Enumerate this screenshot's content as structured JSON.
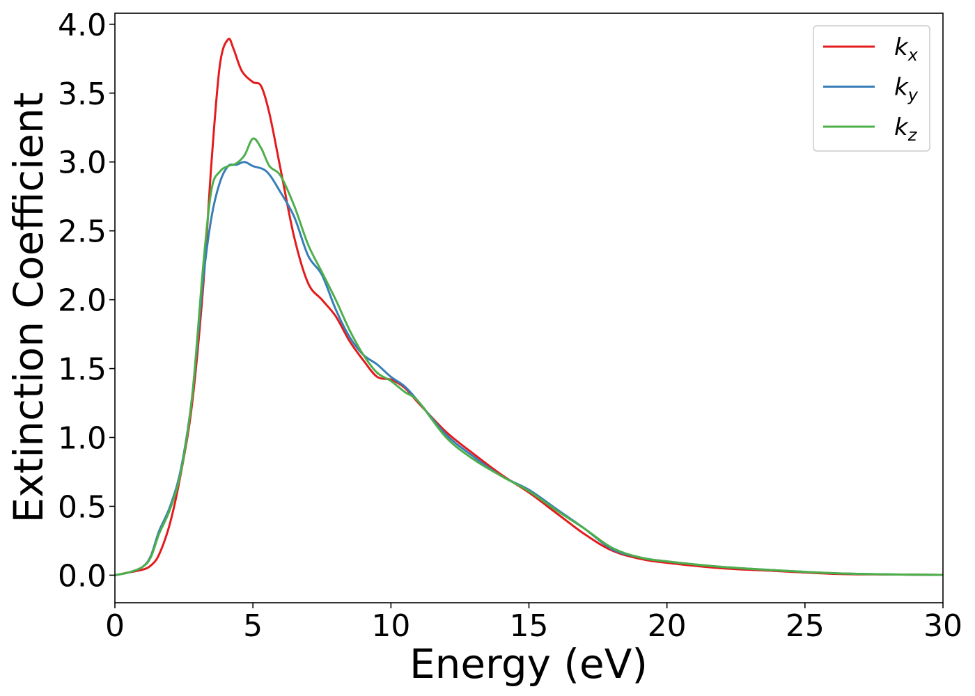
{
  "chart_data": {
    "type": "line",
    "title": "",
    "xlabel": "Energy (eV)",
    "ylabel": "Extinction Coefficient",
    "xlim": [
      0,
      30
    ],
    "ylim": [
      -0.2,
      4.08
    ],
    "xticks": [
      0,
      5,
      10,
      15,
      20,
      25,
      30
    ],
    "xtick_labels": [
      "0",
      "5",
      "10",
      "15",
      "20",
      "25",
      "30"
    ],
    "yticks": [
      0.0,
      0.5,
      1.0,
      1.5,
      2.0,
      2.5,
      3.0,
      3.5,
      4.0
    ],
    "ytick_labels": [
      "0.0",
      "0.5",
      "1.0",
      "1.5",
      "2.0",
      "2.5",
      "3.0",
      "3.5",
      "4.0"
    ],
    "grid": false,
    "legend_position": "top-right",
    "series": [
      {
        "name": "k_x",
        "legend_base": "k",
        "legend_sub": "x",
        "color": "#e41a1c",
        "x": [
          0,
          0.5,
          1.0,
          1.3,
          1.6,
          2.0,
          2.4,
          2.8,
          3.2,
          3.5,
          3.8,
          4.1,
          4.3,
          4.6,
          5.0,
          5.3,
          5.6,
          6.0,
          6.5,
          7.0,
          7.5,
          8.0,
          8.5,
          9.0,
          9.5,
          10.0,
          10.5,
          11.0,
          12.0,
          13.0,
          14.0,
          15.0,
          16.0,
          17.0,
          18.0,
          19.0,
          20.0,
          22.0,
          24.0,
          26.0,
          28.0,
          30.0
        ],
        "values": [
          0.0,
          0.02,
          0.04,
          0.07,
          0.15,
          0.38,
          0.75,
          1.25,
          2.1,
          3.0,
          3.7,
          3.89,
          3.82,
          3.66,
          3.58,
          3.55,
          3.35,
          2.95,
          2.45,
          2.12,
          2.0,
          1.88,
          1.7,
          1.56,
          1.44,
          1.42,
          1.36,
          1.25,
          1.04,
          0.88,
          0.73,
          0.6,
          0.45,
          0.3,
          0.18,
          0.12,
          0.09,
          0.05,
          0.03,
          0.01,
          0.005,
          0.002
        ]
      },
      {
        "name": "k_y",
        "legend_base": "k",
        "legend_sub": "y",
        "color": "#377eb8",
        "x": [
          0,
          0.5,
          1.0,
          1.3,
          1.6,
          2.0,
          2.4,
          2.8,
          3.2,
          3.5,
          3.8,
          4.1,
          4.4,
          4.7,
          5.0,
          5.5,
          6.0,
          6.5,
          7.0,
          7.5,
          8.0,
          8.5,
          9.0,
          9.5,
          10.0,
          10.5,
          11.0,
          12.0,
          13.0,
          14.0,
          15.0,
          16.0,
          17.0,
          18.0,
          19.0,
          20.0,
          22.0,
          24.0,
          26.0,
          28.0,
          30.0
        ],
        "values": [
          0.0,
          0.02,
          0.06,
          0.14,
          0.32,
          0.5,
          0.78,
          1.3,
          2.15,
          2.6,
          2.85,
          2.97,
          2.98,
          3.0,
          2.97,
          2.93,
          2.78,
          2.6,
          2.32,
          2.18,
          1.93,
          1.73,
          1.6,
          1.53,
          1.44,
          1.37,
          1.26,
          1.02,
          0.86,
          0.72,
          0.62,
          0.48,
          0.34,
          0.19,
          0.13,
          0.1,
          0.06,
          0.035,
          0.015,
          0.006,
          0.002
        ]
      },
      {
        "name": "k_z",
        "legend_base": "k",
        "legend_sub": "z",
        "color": "#4daf4a",
        "x": [
          0,
          0.5,
          1.0,
          1.3,
          1.6,
          2.0,
          2.4,
          2.8,
          3.2,
          3.5,
          3.8,
          4.1,
          4.4,
          4.7,
          5.0,
          5.3,
          5.6,
          6.0,
          6.5,
          7.0,
          7.5,
          8.0,
          8.5,
          9.0,
          9.5,
          10.0,
          10.5,
          11.0,
          12.0,
          13.0,
          14.0,
          15.0,
          16.0,
          17.0,
          18.0,
          19.0,
          20.0,
          22.0,
          24.0,
          26.0,
          28.0,
          30.0
        ],
        "values": [
          0.0,
          0.02,
          0.06,
          0.13,
          0.3,
          0.48,
          0.76,
          1.3,
          2.25,
          2.8,
          2.93,
          2.97,
          2.99,
          3.05,
          3.17,
          3.1,
          2.97,
          2.9,
          2.68,
          2.4,
          2.2,
          2.0,
          1.78,
          1.6,
          1.47,
          1.41,
          1.33,
          1.26,
          1.0,
          0.84,
          0.72,
          0.61,
          0.47,
          0.34,
          0.2,
          0.13,
          0.1,
          0.06,
          0.035,
          0.015,
          0.006,
          0.002
        ]
      }
    ]
  }
}
